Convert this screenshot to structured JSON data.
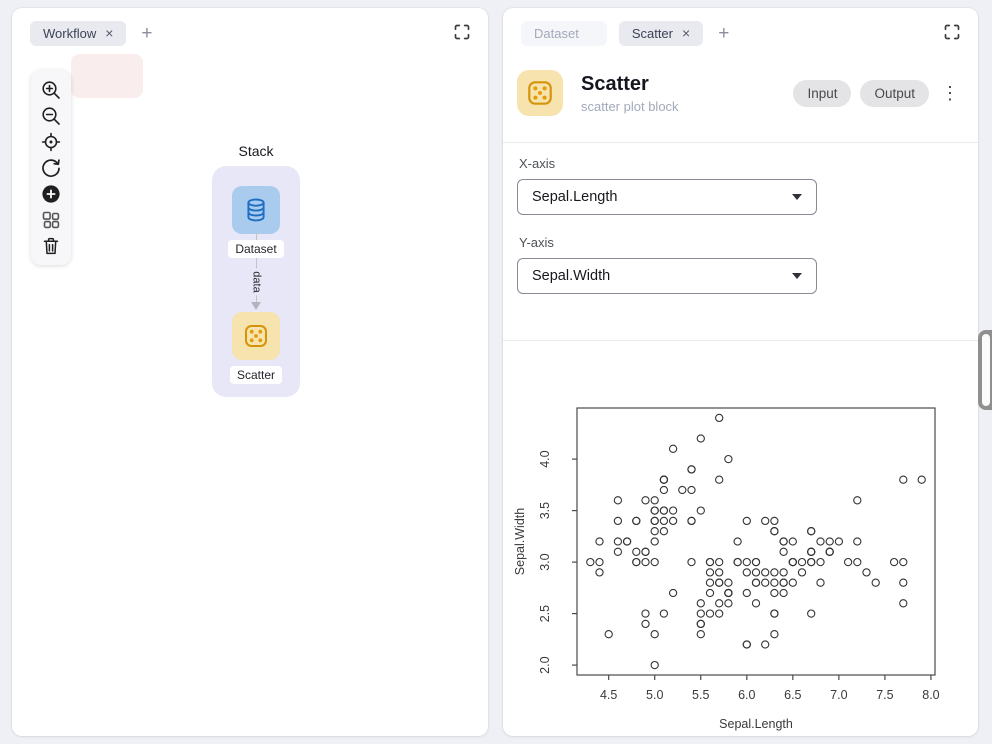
{
  "glyphs": {
    "close": "×",
    "add": "+",
    "kebab": "⋮"
  },
  "left_panel": {
    "tabs": [
      {
        "label": "Workflow"
      }
    ],
    "toolbar_icons": [
      "zoom-in",
      "zoom-out",
      "center-view",
      "reset-view",
      "add-node",
      "auto-arrange",
      "delete"
    ],
    "stack": {
      "title": "Stack",
      "nodes": [
        {
          "name": "Dataset",
          "icon": "database-icon"
        },
        {
          "name": "Scatter",
          "icon": "dice-icon"
        }
      ],
      "edge_label": "data"
    }
  },
  "right_panel": {
    "tabs": [
      {
        "label": "Dataset"
      },
      {
        "label": "Scatter"
      }
    ],
    "header": {
      "title": "Scatter",
      "subtitle": "scatter plot block",
      "input_button": "Input",
      "output_button": "Output"
    },
    "form": {
      "x_axis_label": "X-axis",
      "x_axis_value": "Sepal.Length",
      "y_axis_label": "Y-axis",
      "y_axis_value": "Sepal.Width"
    }
  },
  "colors": {
    "dataset_node_bg": "#a9cbee",
    "dataset_icon": "#1e6fc3",
    "scatter_node_bg": "#f6e3ad",
    "scatter_icon": "#d59408",
    "stack_bg": "#e7e7f8",
    "active_tab_bg": "#e8eaef",
    "inactive_tab_bg": "#f5f6f9",
    "ghost_node_bg": "#faeded"
  },
  "chart_data": {
    "type": "scatter",
    "title": "",
    "xlabel": "Sepal.Length",
    "ylabel": "Sepal.Width",
    "xlim": [
      4.156,
      8.044
    ],
    "ylim": [
      1.904,
      4.496
    ],
    "xticks": [
      4.5,
      5.0,
      5.5,
      6.0,
      6.5,
      7.0,
      7.5,
      8.0
    ],
    "yticks": [
      2.0,
      2.5,
      3.0,
      3.5,
      4.0
    ],
    "grid": false,
    "marker": "open-circle",
    "x": [
      5.1,
      4.9,
      4.7,
      4.6,
      5.0,
      5.4,
      4.6,
      5.0,
      4.4,
      4.9,
      5.4,
      4.8,
      4.8,
      4.3,
      5.8,
      5.7,
      5.4,
      5.1,
      5.7,
      5.1,
      5.4,
      5.1,
      4.6,
      5.1,
      4.8,
      5.0,
      5.0,
      5.2,
      5.2,
      4.7,
      4.8,
      5.4,
      5.2,
      5.5,
      4.9,
      5.0,
      5.5,
      4.9,
      4.4,
      5.1,
      5.0,
      4.5,
      4.4,
      5.0,
      5.1,
      4.8,
      5.1,
      4.6,
      5.3,
      5.0,
      7.0,
      6.4,
      6.9,
      5.5,
      6.5,
      5.7,
      6.3,
      4.9,
      6.6,
      5.2,
      5.0,
      5.9,
      6.0,
      6.1,
      5.6,
      6.7,
      5.6,
      5.8,
      6.2,
      5.6,
      5.9,
      6.1,
      6.3,
      6.1,
      6.4,
      6.6,
      6.8,
      6.7,
      6.0,
      5.7,
      5.5,
      5.5,
      5.8,
      6.0,
      5.4,
      6.0,
      6.7,
      6.3,
      5.6,
      5.5,
      5.5,
      6.1,
      5.8,
      5.0,
      5.6,
      5.7,
      5.7,
      6.2,
      5.1,
      5.7,
      6.3,
      5.8,
      7.1,
      6.3,
      6.5,
      7.6,
      4.9,
      7.3,
      6.7,
      7.2,
      6.5,
      6.4,
      6.8,
      5.7,
      5.8,
      6.4,
      6.5,
      7.7,
      7.7,
      6.0,
      6.9,
      5.6,
      7.7,
      6.3,
      6.7,
      7.2,
      6.2,
      6.1,
      6.4,
      7.2,
      7.4,
      7.9,
      6.4,
      6.3,
      6.1,
      7.7,
      6.3,
      6.4,
      6.0,
      6.9,
      6.7,
      6.9,
      5.8,
      6.8,
      6.7,
      6.7,
      6.3,
      6.5,
      6.2,
      5.9
    ],
    "y": [
      3.5,
      3.0,
      3.2,
      3.1,
      3.6,
      3.9,
      3.4,
      3.4,
      2.9,
      3.1,
      3.7,
      3.4,
      3.0,
      3.0,
      4.0,
      4.4,
      3.9,
      3.5,
      3.8,
      3.8,
      3.4,
      3.7,
      3.6,
      3.3,
      3.4,
      3.0,
      3.4,
      3.5,
      3.4,
      3.2,
      3.1,
      3.4,
      4.1,
      4.2,
      3.1,
      3.2,
      3.5,
      3.6,
      3.0,
      3.4,
      3.5,
      2.3,
      3.2,
      3.5,
      3.8,
      3.0,
      3.8,
      3.2,
      3.7,
      3.3,
      3.2,
      3.2,
      3.1,
      2.3,
      2.8,
      2.8,
      3.3,
      2.4,
      2.9,
      2.7,
      2.0,
      3.0,
      2.2,
      2.9,
      2.9,
      3.1,
      3.0,
      2.7,
      2.2,
      2.5,
      3.2,
      2.8,
      2.5,
      2.8,
      2.9,
      3.0,
      2.8,
      3.0,
      2.9,
      2.6,
      2.4,
      2.4,
      2.7,
      2.7,
      3.0,
      3.4,
      3.1,
      2.3,
      3.0,
      2.5,
      2.6,
      3.0,
      2.6,
      2.3,
      2.7,
      3.0,
      2.9,
      2.9,
      2.5,
      2.8,
      3.3,
      2.7,
      3.0,
      2.9,
      3.0,
      3.0,
      2.5,
      2.9,
      2.5,
      3.6,
      3.2,
      2.7,
      3.0,
      2.5,
      2.8,
      3.2,
      3.0,
      3.8,
      2.6,
      2.2,
      3.2,
      2.8,
      2.8,
      2.7,
      3.3,
      3.2,
      2.8,
      3.0,
      2.8,
      3.0,
      2.8,
      3.8,
      2.8,
      2.8,
      2.6,
      3.0,
      3.4,
      3.1,
      3.0,
      3.1,
      3.1,
      3.1,
      2.7,
      3.2,
      3.3,
      3.0,
      2.5,
      3.0,
      3.4,
      3.0
    ]
  }
}
